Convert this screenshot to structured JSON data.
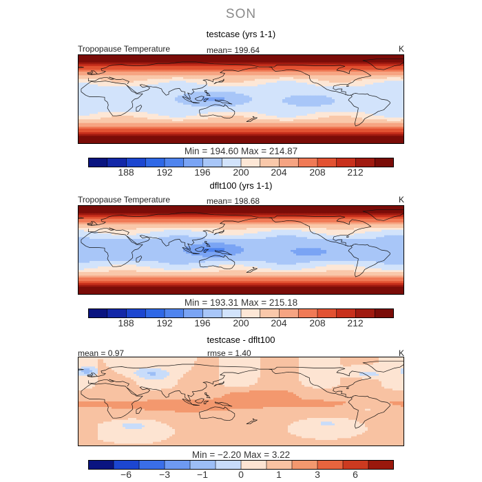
{
  "title": "SON",
  "colors": {
    "seq": [
      "#0a1480",
      "#1328a8",
      "#1c46d0",
      "#2f68e6",
      "#4f84ee",
      "#7aa4f4",
      "#a8c6f8",
      "#d2e3fb",
      "#fde7d6",
      "#f9c8aa",
      "#f6a482",
      "#f07a56",
      "#e25232",
      "#c8301c",
      "#a01a10",
      "#7a0c08"
    ],
    "diff": [
      "#0a1480",
      "#1c46d0",
      "#3a6ee8",
      "#6e9af2",
      "#9cbef6",
      "#c8dcfa",
      "#fde4d2",
      "#f8c2a2",
      "#f3986e",
      "#e8643e",
      "#cc3a20",
      "#9a180c"
    ]
  },
  "panels": [
    {
      "title": "testcase (yrs 1-1)",
      "left_label": "Tropopause Temperature",
      "stat_label": "mean= 199.64",
      "units": "K",
      "minmax": "Min = 194.60  Max = 214.87",
      "ticks": [
        "188",
        "192",
        "196",
        "200",
        "204",
        "208",
        "212"
      ],
      "field": {
        "eq_t": 196.4,
        "pole_t": 214.8,
        "warm_pool": -1.3,
        "east_pac": -0.8
      }
    },
    {
      "title": "dflt100 (yrs 1-1)",
      "left_label": "Tropopause Temperature",
      "stat_label": "mean= 198.68",
      "units": "K",
      "minmax": "Min = 193.31  Max = 215.18",
      "ticks": [
        "188",
        "192",
        "196",
        "200",
        "204",
        "208",
        "212"
      ],
      "field": {
        "eq_t": 195.0,
        "pole_t": 215.1,
        "warm_pool": -1.6,
        "east_pac": -0.9
      }
    },
    {
      "title": "testcase - dflt100",
      "left_label": "mean =   0.97",
      "stat_label": "rmse =    1.40",
      "units": "K",
      "minmax": "Min =  −2.20  Max =    3.22",
      "ticks": [
        "−6",
        "−3",
        "−1",
        "0",
        "1",
        "3",
        "6"
      ]
    }
  ]
}
